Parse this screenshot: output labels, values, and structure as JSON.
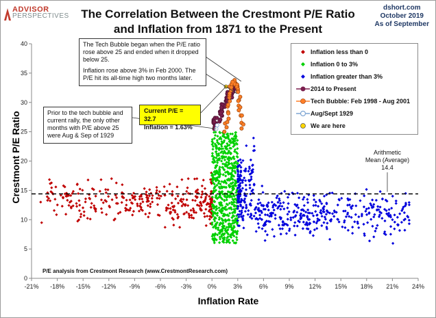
{
  "header": {
    "logo_top": "ADVISOR",
    "logo_bottom": "PERSPECTIVES",
    "title_line1": "The Correlation Between the Crestmont P/E Ratio",
    "title_line2": "and Inflation from 1871 to the Present",
    "source_line1": "dshort.com",
    "source_line2": "October 2019",
    "source_line3": "As of September"
  },
  "annotations": {
    "tech_bubble_p1": "The Tech Bubble began when the P/E ratio rose above 25 and ended when it dropped below 25.",
    "tech_bubble_p2": "Inflation rose above 3% in Feb 2000.  The P/E hit its all-time high two months later.",
    "prior_note": "Prior to the tech bubble and current rally, the only other months with P/E above 25 were Aug & Sep of 1929",
    "current_pe": "Current P/E = 32.7",
    "current_inflation": "Inflation = 1.63%",
    "mean_line1": "Arithmetic",
    "mean_line2": "Mean (Average)",
    "mean_value": "14.4",
    "footnote": "P/E analysis from Crestmont Research (www.CrestmontResearch.com)"
  },
  "colors": {
    "below_zero": "#c00000",
    "zero_to_three": "#00d000",
    "above_three": "#0000dd",
    "since_2014": "#7b1f4e",
    "tech_bubble": "#ff7f27",
    "aug_sep_1929": "#7fa6d4",
    "we_are_here": "#ffd700"
  },
  "chart_data": {
    "type": "scatter",
    "title": "",
    "xlabel": "Inflation Rate",
    "ylabel": "Crestmont P/E Ratio",
    "xlim": [
      -21,
      24
    ],
    "ylim": [
      0,
      40
    ],
    "x_ticks": [
      "-21%",
      "-18%",
      "-15%",
      "-12%",
      "-9%",
      "-6%",
      "-3%",
      "0%",
      "3%",
      "6%",
      "9%",
      "12%",
      "15%",
      "18%",
      "21%",
      "24%"
    ],
    "y_ticks": [
      "0",
      "5",
      "10",
      "15",
      "20",
      "25",
      "30",
      "35",
      "40"
    ],
    "grid": false,
    "legend_position": "top-right",
    "mean_line": 14.4,
    "series": [
      {
        "name": "Inflation less than 0",
        "marker": "diamond",
        "color": "#c00000",
        "x_range": [
          -20,
          0
        ],
        "y_range": [
          6,
          22
        ],
        "description_count": 330
      },
      {
        "name": "Inflation  0 to 3%",
        "marker": "diamond",
        "color": "#00d000",
        "x_range": [
          0,
          3
        ],
        "y_range": [
          6,
          25
        ],
        "description_count": 600
      },
      {
        "name": "Inflation greater than 3%",
        "marker": "diamond",
        "color": "#0000dd",
        "x_range": [
          3,
          23
        ],
        "y_range": [
          5,
          25
        ],
        "description_count": 520
      },
      {
        "name": "2014 to Present",
        "marker": "circle",
        "color": "#7b1f4e",
        "x_range": [
          -0.3,
          2.9
        ],
        "y_range": [
          25,
          33.5
        ],
        "description_count": 65
      },
      {
        "name": "Tech Bubble: Feb 1998 - Aug 2001",
        "marker": "circle",
        "color": "#ff7f27",
        "x_range": [
          1.3,
          3.8
        ],
        "y_range": [
          25,
          33.8
        ],
        "description_count": 43
      },
      {
        "name": "Aug/Sept 1929",
        "marker": "circle",
        "color": "#7fa6d4",
        "points": [
          [
            0.5,
            25.5
          ],
          [
            0.6,
            26.1
          ]
        ]
      },
      {
        "name": "We are here",
        "marker": "circle",
        "color": "#ffd700",
        "points": [
          [
            1.63,
            32.7
          ]
        ]
      }
    ]
  }
}
